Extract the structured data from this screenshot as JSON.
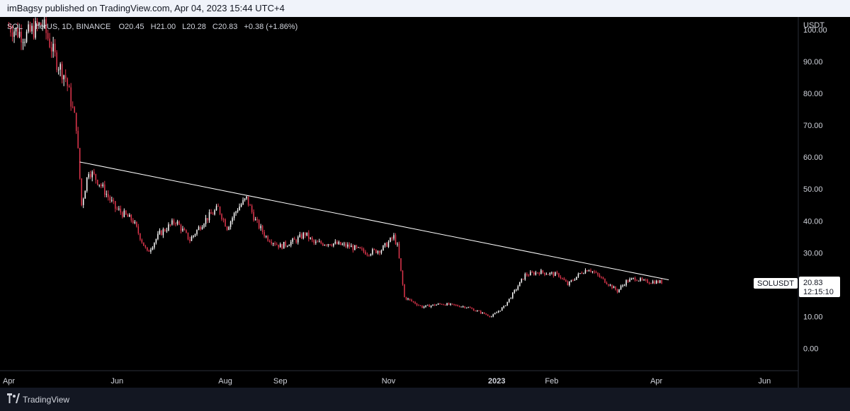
{
  "header": {
    "published_text": "imBagsy published on TradingView.com, Apr 04, 2023 15:44 UTC+4"
  },
  "legend": {
    "symbol_prefix": "SOL",
    "symbol_suffix": "herUS, 1D, BINANCE",
    "open_label": "O",
    "open_value": "20.45",
    "high_label": "H",
    "high_value": "21.00",
    "low_label": "L",
    "low_value": "20.28",
    "close_label": "C",
    "close_value": "20.83",
    "change": "+0.38 (+1.86%)"
  },
  "price_scale": {
    "currency": "USDT",
    "badge_symbol": "SOLUSDT",
    "badge_price": "20.83",
    "badge_countdown": "12:15:10"
  },
  "footer": {
    "brand": "TradingView"
  },
  "colors": {
    "background": "#000000",
    "up": "#ffffff",
    "down": "#e0364d",
    "trendline": "#ffffff",
    "text": "#d1d4dc"
  },
  "icons": {
    "logo": "tradingview-logo-icon"
  },
  "chart_data": {
    "type": "candlestick",
    "timeframe": "1D",
    "exchange": "BINANCE",
    "y_ticks": [
      "100.00",
      "90.00",
      "80.00",
      "70.00",
      "60.00",
      "50.00",
      "40.00",
      "30.00",
      "10.00",
      "0.00"
    ],
    "x_ticks": [
      "Apr",
      "Jun",
      "Aug",
      "Sep",
      "Nov",
      "2023",
      "Feb",
      "Apr",
      "Jun"
    ],
    "ylim": [
      -7,
      104
    ],
    "last_price": 20.83,
    "price_path": [
      [
        "2022-04-01",
        101
      ],
      [
        "2022-04-10",
        98
      ],
      [
        "2022-04-20",
        102
      ],
      [
        "2022-04-28",
        90
      ],
      [
        "2022-05-03",
        85
      ],
      [
        "2022-05-09",
        70
      ],
      [
        "2022-05-12",
        45
      ],
      [
        "2022-05-16",
        56
      ],
      [
        "2022-05-22",
        52
      ],
      [
        "2022-05-31",
        44
      ],
      [
        "2022-06-10",
        40
      ],
      [
        "2022-06-18",
        30
      ],
      [
        "2022-06-25",
        36
      ],
      [
        "2022-07-04",
        40
      ],
      [
        "2022-07-12",
        34
      ],
      [
        "2022-07-20",
        40
      ],
      [
        "2022-07-28",
        44
      ],
      [
        "2022-08-02",
        38
      ],
      [
        "2022-08-08",
        44
      ],
      [
        "2022-08-13",
        47
      ],
      [
        "2022-08-18",
        40
      ],
      [
        "2022-08-24",
        35
      ],
      [
        "2022-09-01",
        32
      ],
      [
        "2022-09-10",
        34
      ],
      [
        "2022-09-15",
        36
      ],
      [
        "2022-09-20",
        33
      ],
      [
        "2022-09-30",
        33
      ],
      [
        "2022-10-10",
        32
      ],
      [
        "2022-10-20",
        30
      ],
      [
        "2022-10-28",
        31
      ],
      [
        "2022-11-04",
        35
      ],
      [
        "2022-11-06",
        32
      ],
      [
        "2022-11-10",
        16
      ],
      [
        "2022-11-20",
        13
      ],
      [
        "2022-12-01",
        14
      ],
      [
        "2022-12-15",
        13
      ],
      [
        "2022-12-29",
        10
      ],
      [
        "2023-01-05",
        13
      ],
      [
        "2023-01-10",
        17
      ],
      [
        "2023-01-17",
        23
      ],
      [
        "2023-01-25",
        24
      ],
      [
        "2023-02-05",
        23
      ],
      [
        "2023-02-10",
        20
      ],
      [
        "2023-02-18",
        24
      ],
      [
        "2023-02-22",
        25
      ],
      [
        "2023-03-01",
        22
      ],
      [
        "2023-03-10",
        18
      ],
      [
        "2023-03-15",
        21
      ],
      [
        "2023-03-20",
        22
      ],
      [
        "2023-03-25",
        21
      ],
      [
        "2023-04-04",
        20.83
      ]
    ],
    "trendline": {
      "from": [
        "2022-05-11",
        58.5
      ],
      "to": [
        "2023-04-08",
        21.5
      ]
    }
  }
}
